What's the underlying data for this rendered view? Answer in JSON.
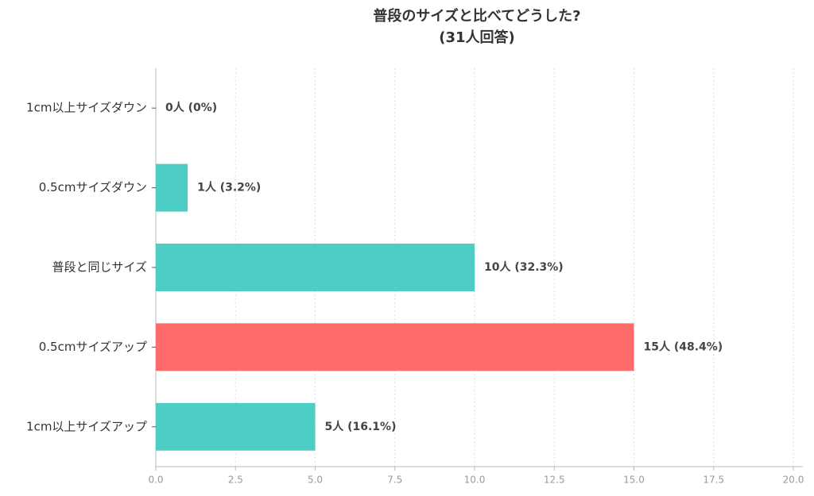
{
  "chart_data": {
    "type": "barh",
    "title": "普段のサイズと比べてどうした?",
    "subtitle": "(31人回答)",
    "categories": [
      "1cm以上サイズダウン",
      "0.5cmサイズダウン",
      "普段と同じサイズ",
      "0.5cmサイズアップ",
      "1cm以上サイズアップ"
    ],
    "values": [
      0,
      1,
      10,
      15,
      5
    ],
    "value_labels": [
      "0人 (0%)",
      "1人 (3.2%)",
      "10人 (32.3%)",
      "15人 (48.4%)",
      "5人 (16.1%)"
    ],
    "colors": [
      "#4ecdc4",
      "#4ecdc4",
      "#4ecdc4",
      "#ff6b6b",
      "#4ecdc4"
    ],
    "xlim": [
      0,
      20.3
    ],
    "xticks": [
      {
        "value": 0,
        "label": "0.0"
      },
      2.5,
      {
        "value": 5,
        "label": "5.0"
      },
      7.5,
      {
        "value": 10,
        "label": "10.0"
      },
      12.5,
      {
        "value": 15,
        "label": "15.0"
      },
      17.5,
      {
        "value": 20,
        "label": "20.0"
      }
    ],
    "grid": true
  }
}
